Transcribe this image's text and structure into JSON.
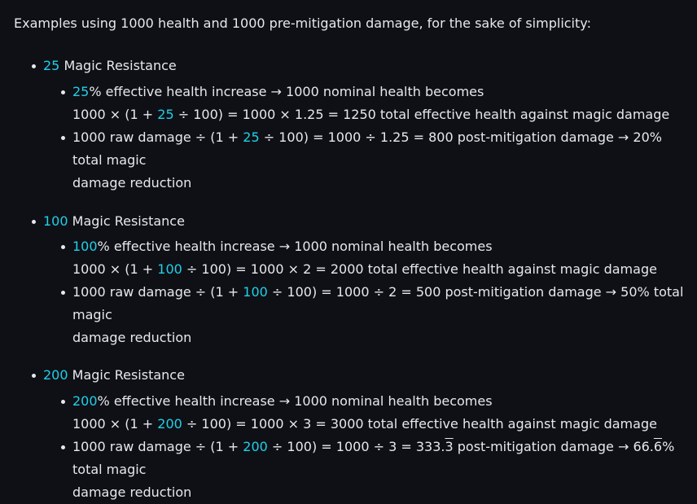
{
  "intro": "Examples using 1000 health and 1000 pre-mitigation damage, for the sake of simplicity:",
  "sections": [
    {
      "value": "25",
      "heading_suffix": " Magic Resistance",
      "line1_rest": "% effective health increase → 1000 nominal health becomes",
      "line2_pre": "1000 × (1 + ",
      "line2_post": " ÷ 100) = 1000 × 1.25 = 1250 total effective health against magic damage",
      "line3_pre": "1000 raw damage ÷ (1 + ",
      "line3_mid": " ÷ 100) = 1000 ÷ 1.25 = 800 post-mitigation damage → 20% total magic",
      "line3_wrap": "damage reduction"
    },
    {
      "value": "100",
      "heading_suffix": " Magic Resistance",
      "line1_rest": "% effective health increase → 1000 nominal health becomes",
      "line2_pre": "1000 × (1 + ",
      "line2_post": " ÷ 100) = 1000 × 2 = 2000 total effective health against magic damage",
      "line3_pre": "1000 raw damage ÷ (1 + ",
      "line3_mid": " ÷ 100) = 1000 ÷ 2 = 500 post-mitigation damage → 50% total magic",
      "line3_wrap": "damage reduction"
    },
    {
      "value": "200",
      "heading_suffix": " Magic Resistance",
      "line1_rest": "% effective health increase → 1000 nominal health becomes",
      "line2_pre": "1000 × (1 + ",
      "line2_post": " ÷ 100) = 1000 × 3 = 3000 total effective health against magic damage",
      "line3_pre": "1000 raw damage ÷ (1 + ",
      "line3_a": " ÷ 100) = 1000 ÷ 3 = 333.",
      "line3_rep1": "3",
      "line3_b": " post-mitigation damage → 66.",
      "line3_rep2": "6",
      "line3_c": "% total magic",
      "line3_wrap": "damage reduction"
    }
  ]
}
